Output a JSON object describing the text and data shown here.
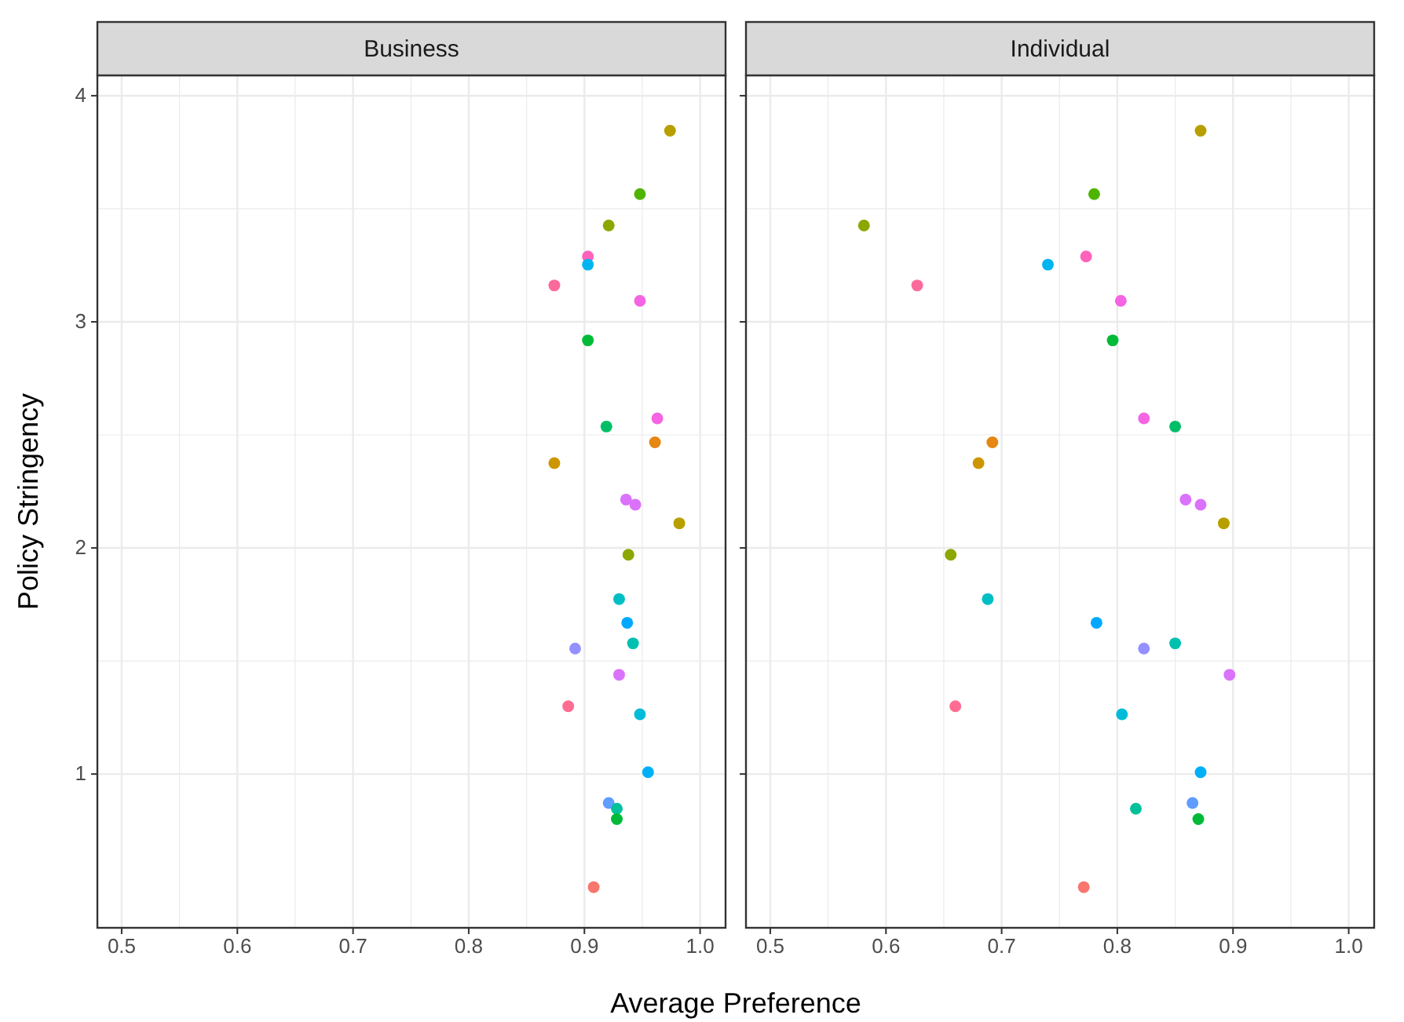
{
  "chart_data": [
    {
      "type": "scatter",
      "title": "Business",
      "xlabel": "Average Preference",
      "ylabel": "Policy Stringency",
      "xlim": [
        0.479,
        1.022
      ],
      "ylim": [
        0.32,
        4.09
      ],
      "xticks": [
        0.5,
        0.6,
        0.7,
        0.8,
        0.9,
        {
          "value": 1,
          "label": "1.0"
        }
      ],
      "yticks": [
        1,
        2,
        3,
        4
      ],
      "grid": true,
      "marker": "circle",
      "series": [
        {
          "x": [
            0.974,
            0.948,
            0.921,
            0.903,
            0.903,
            0.874,
            0.948,
            0.903,
            0.963,
            0.919,
            0.961,
            0.874,
            0.936,
            0.944,
            0.982,
            0.938,
            0.93,
            0.937,
            0.942,
            0.892,
            0.93,
            0.886,
            0.948,
            0.955,
            0.921,
            0.928,
            0.928,
            0.908
          ],
          "values": [
            3.845,
            3.565,
            3.426,
            3.289,
            3.253,
            3.161,
            3.093,
            2.918,
            2.573,
            2.537,
            2.467,
            2.375,
            2.214,
            2.191,
            2.109,
            1.97,
            1.774,
            1.669,
            1.578,
            1.555,
            1.439,
            1.3,
            1.264,
            1.008,
            0.872,
            0.847,
            0.801,
            0.5
          ],
          "colors": [
            "#b79f00",
            "#4fb400",
            "#8ba700",
            "#ff62bc",
            "#00b4f0",
            "#fb6a9a",
            "#f564e3",
            "#00ba38",
            "#f564e3",
            "#00be67",
            "#e68613",
            "#cd9600",
            "#db72fb",
            "#db72fb",
            "#b79f00",
            "#8ba700",
            "#00bfc4",
            "#00a9ff",
            "#00c0af",
            "#9590ff",
            "#db72fb",
            "#ff6c91",
            "#00bcd8",
            "#00b0f6",
            "#619cff",
            "#00c19a",
            "#00ba38",
            "#f8766d"
          ]
        }
      ]
    },
    {
      "type": "scatter",
      "title": "Individual",
      "xlim": [
        0.479,
        1.022
      ],
      "ylim": [
        0.32,
        4.09
      ],
      "xticks": [
        0.5,
        0.6,
        0.7,
        0.8,
        0.9,
        {
          "value": 1,
          "label": "1.0"
        }
      ],
      "yticks": [
        1,
        2,
        3,
        4
      ],
      "grid": true,
      "marker": "circle",
      "tick_labels": "x",
      "series": [
        {
          "x": [
            0.872,
            0.78,
            0.581,
            0.773,
            0.74,
            0.627,
            0.803,
            0.796,
            0.823,
            0.85,
            0.692,
            0.68,
            0.859,
            0.872,
            0.892,
            0.656,
            0.688,
            0.782,
            0.85,
            0.823,
            0.897,
            0.66,
            0.804,
            0.872,
            0.865,
            0.816,
            0.87,
            0.771
          ],
          "values": [
            3.845,
            3.565,
            3.426,
            3.289,
            3.253,
            3.161,
            3.093,
            2.918,
            2.573,
            2.537,
            2.467,
            2.375,
            2.214,
            2.191,
            2.109,
            1.97,
            1.774,
            1.669,
            1.578,
            1.555,
            1.439,
            1.3,
            1.264,
            1.008,
            0.872,
            0.847,
            0.801,
            0.5
          ],
          "colors": [
            "#b79f00",
            "#4fb400",
            "#8ba700",
            "#ff62bc",
            "#00b4f0",
            "#fb6a9a",
            "#f564e3",
            "#00ba38",
            "#f564e3",
            "#00be67",
            "#e68613",
            "#cd9600",
            "#db72fb",
            "#db72fb",
            "#b79f00",
            "#8ba700",
            "#00bfc4",
            "#00a9ff",
            "#00c0af",
            "#9590ff",
            "#db72fb",
            "#ff6c91",
            "#00bcd8",
            "#00b0f6",
            "#619cff",
            "#00c19a",
            "#00ba38",
            "#f8766d"
          ]
        }
      ]
    }
  ]
}
